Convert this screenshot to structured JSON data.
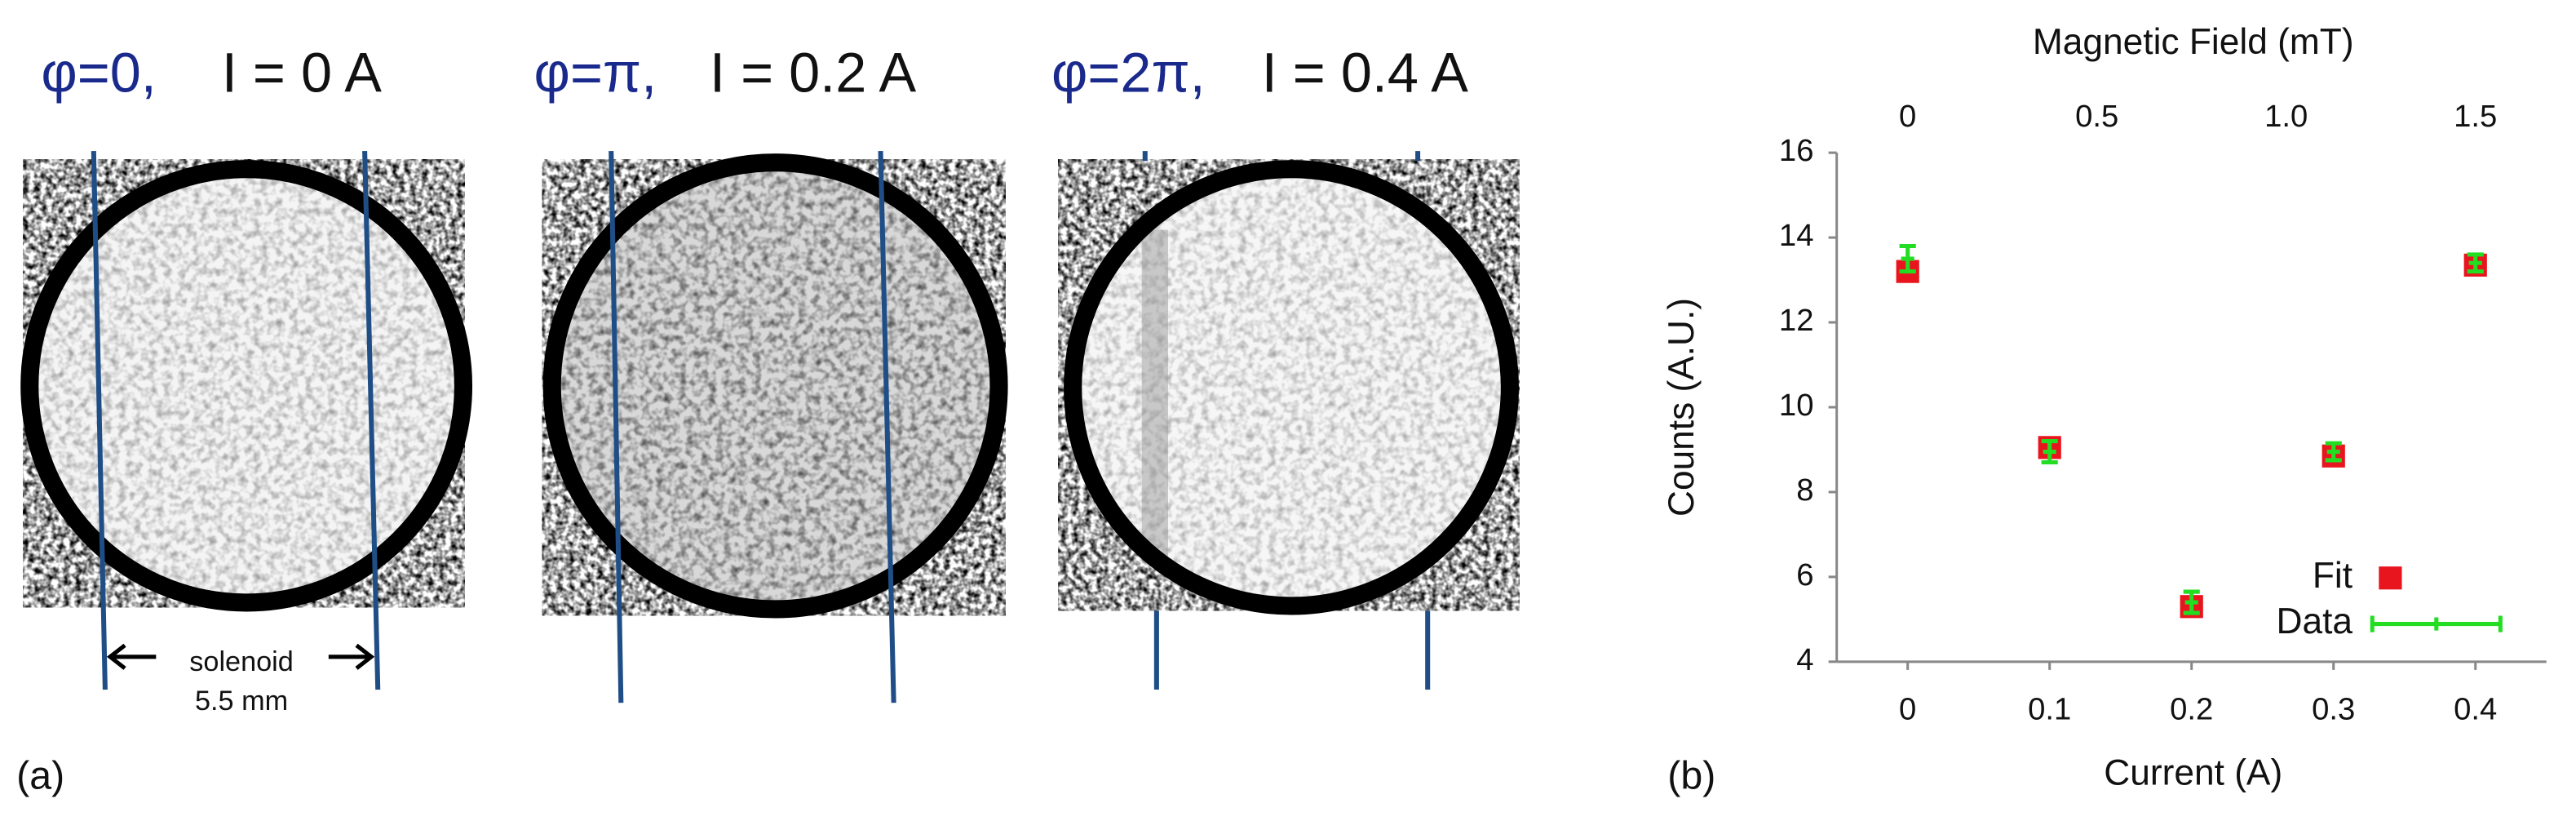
{
  "panel_a": {
    "label": "(a)",
    "frames": [
      {
        "phase": "φ=0,",
        "current": "I = 0 A"
      },
      {
        "phase": "φ=π,",
        "current": "I = 0.2 A"
      },
      {
        "phase": "φ=2π,",
        "current": "I = 0.4 A"
      }
    ],
    "annotation": {
      "text": "solenoid",
      "size": "5.5 mm"
    }
  },
  "chart_data": {
    "type": "scatter",
    "label": "(b)",
    "x_label": "Current (A)",
    "y_label": "Counts (A.U.)",
    "x2_label": "Magnetic Field (mT)",
    "xlim": [
      -0.05,
      0.45
    ],
    "xticks": [
      0,
      0.1,
      0.2,
      0.3,
      0.4
    ],
    "x2lim": [
      -0.1875,
      1.6875
    ],
    "x2ticks": [
      0,
      0.5,
      {
        "value": 1,
        "label": "1.0"
      },
      1.5
    ],
    "ylim": [
      4,
      16
    ],
    "yticks": [
      4,
      6,
      8,
      10,
      12,
      14,
      16
    ],
    "legend": "lower right",
    "series": [
      {
        "name": "Fit",
        "color": "#e8141e",
        "marker": "square",
        "x": [
          0,
          0.1,
          0.2,
          0.3,
          0.4
        ],
        "values": [
          13.2,
          9.05,
          5.3,
          8.85,
          13.35
        ]
      },
      {
        "name": "Data",
        "color": "#22dd22",
        "marker": "errorbar",
        "x": [
          0,
          0.1,
          0.2,
          0.3,
          0.4
        ],
        "values": [
          13.5,
          8.95,
          5.4,
          8.95,
          13.4
        ],
        "errors": [
          0.3,
          0.25,
          0.25,
          0.2,
          0.2
        ]
      }
    ]
  }
}
